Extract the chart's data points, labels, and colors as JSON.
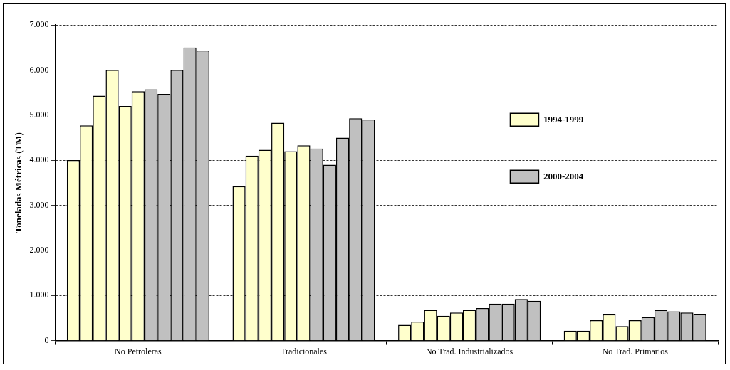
{
  "chart_data": {
    "type": "bar",
    "ylabel": "Toneladas Métricas (TM)",
    "categories": [
      "No Petroleras",
      "Tradicionales",
      "No Trad. Industrializados",
      "No Trad. Primarios"
    ],
    "series": [
      {
        "name": "1994-1999",
        "color": "#ffffcc",
        "values": [
          4000,
          3420,
          350,
          220
        ]
      },
      {
        "color": "#ffffcc",
        "values": [
          4770,
          4100,
          420,
          220
        ]
      },
      {
        "color": "#ffffcc",
        "values": [
          5430,
          4230,
          680,
          450
        ]
      },
      {
        "color": "#ffffcc",
        "values": [
          6000,
          4830,
          550,
          580
        ]
      },
      {
        "color": "#ffffcc",
        "values": [
          5200,
          4200,
          620,
          320
        ]
      },
      {
        "color": "#ffffcc",
        "values": [
          5530,
          4330,
          680,
          450
        ]
      },
      {
        "name": "2000-2004",
        "color": "#c0c0c0",
        "values": [
          5570,
          4260,
          720,
          520
        ]
      },
      {
        "color": "#c0c0c0",
        "values": [
          5470,
          3900,
          820,
          680
        ]
      },
      {
        "color": "#c0c0c0",
        "values": [
          6000,
          4500,
          820,
          650
        ]
      },
      {
        "color": "#c0c0c0",
        "values": [
          6500,
          4930,
          920,
          620
        ]
      },
      {
        "color": "#c0c0c0",
        "values": [
          6430,
          4900,
          880,
          580
        ]
      }
    ],
    "ylim": [
      0,
      7000
    ],
    "yticks": [
      {
        "value": 0,
        "label": "0"
      },
      {
        "value": 1000,
        "label": "1.000"
      },
      {
        "value": 2000,
        "label": "2.000"
      },
      {
        "value": 3000,
        "label": "3.000"
      },
      {
        "value": 4000,
        "label": "4.000"
      },
      {
        "value": 5000,
        "label": "5.000"
      },
      {
        "value": 6000,
        "label": "6.000"
      },
      {
        "value": 7000,
        "label": "7.000"
      }
    ],
    "grid": "y",
    "legend": "right"
  }
}
